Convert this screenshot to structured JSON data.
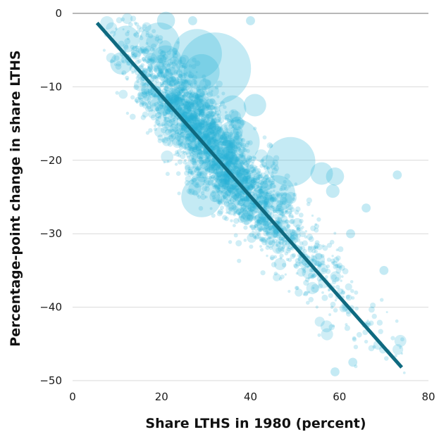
{
  "chart_data": {
    "type": "scatter",
    "title": "",
    "xlabel": "Share LTHS in 1980 (percent)",
    "ylabel": "Percentage-point change in share LTHS",
    "xlim": [
      0,
      80
    ],
    "ylim": [
      -50,
      0
    ],
    "x_ticks": [
      "0",
      "20",
      "40",
      "60",
      "80"
    ],
    "y_ticks": [
      "0",
      "−10",
      "−20",
      "−30",
      "−40",
      "−50"
    ],
    "grid": "horizontal",
    "legend": "none",
    "point_color": "#2ab2d6",
    "line_color": "#0f6a80",
    "grid_color": "#d9d9d9",
    "zero_line_color": "#8c8c8c",
    "fit_line": {
      "x": [
        5.5,
        74
      ],
      "y": [
        -1.3,
        -48.2
      ]
    },
    "points_note_count": 3000,
    "highlight_points": [
      {
        "x": 21,
        "y": -1,
        "size": 4
      },
      {
        "x": 19.5,
        "y": -4,
        "size": 9
      },
      {
        "x": 12,
        "y": -3.5,
        "size": 6
      },
      {
        "x": 11,
        "y": -6.8,
        "size": 5
      },
      {
        "x": 21,
        "y": -6.5,
        "size": 7
      },
      {
        "x": 28,
        "y": -5.5,
        "size": 11
      },
      {
        "x": 32,
        "y": -7.5,
        "size": 16
      },
      {
        "x": 29,
        "y": -8,
        "size": 8
      },
      {
        "x": 36,
        "y": -13,
        "size": 6
      },
      {
        "x": 41,
        "y": -12.5,
        "size": 5
      },
      {
        "x": 37,
        "y": -17.5,
        "size": 10
      },
      {
        "x": 49,
        "y": -20.2,
        "size": 11
      },
      {
        "x": 56,
        "y": -21.8,
        "size": 5
      },
      {
        "x": 59,
        "y": -22.2,
        "size": 4
      },
      {
        "x": 58.5,
        "y": -24.2,
        "size": 3
      },
      {
        "x": 29,
        "y": -25,
        "size": 9
      },
      {
        "x": 46,
        "y": -24.5,
        "size": 8
      },
      {
        "x": 73,
        "y": -22,
        "size": 2
      },
      {
        "x": 66,
        "y": -26.5,
        "size": 2
      },
      {
        "x": 62.5,
        "y": -30,
        "size": 2
      },
      {
        "x": 70,
        "y": -35,
        "size": 2
      },
      {
        "x": 63,
        "y": -47.5,
        "size": 2
      },
      {
        "x": 59,
        "y": -48.8,
        "size": 2
      },
      {
        "x": 40,
        "y": -1,
        "size": 2
      },
      {
        "x": 27,
        "y": -1,
        "size": 2
      }
    ]
  }
}
